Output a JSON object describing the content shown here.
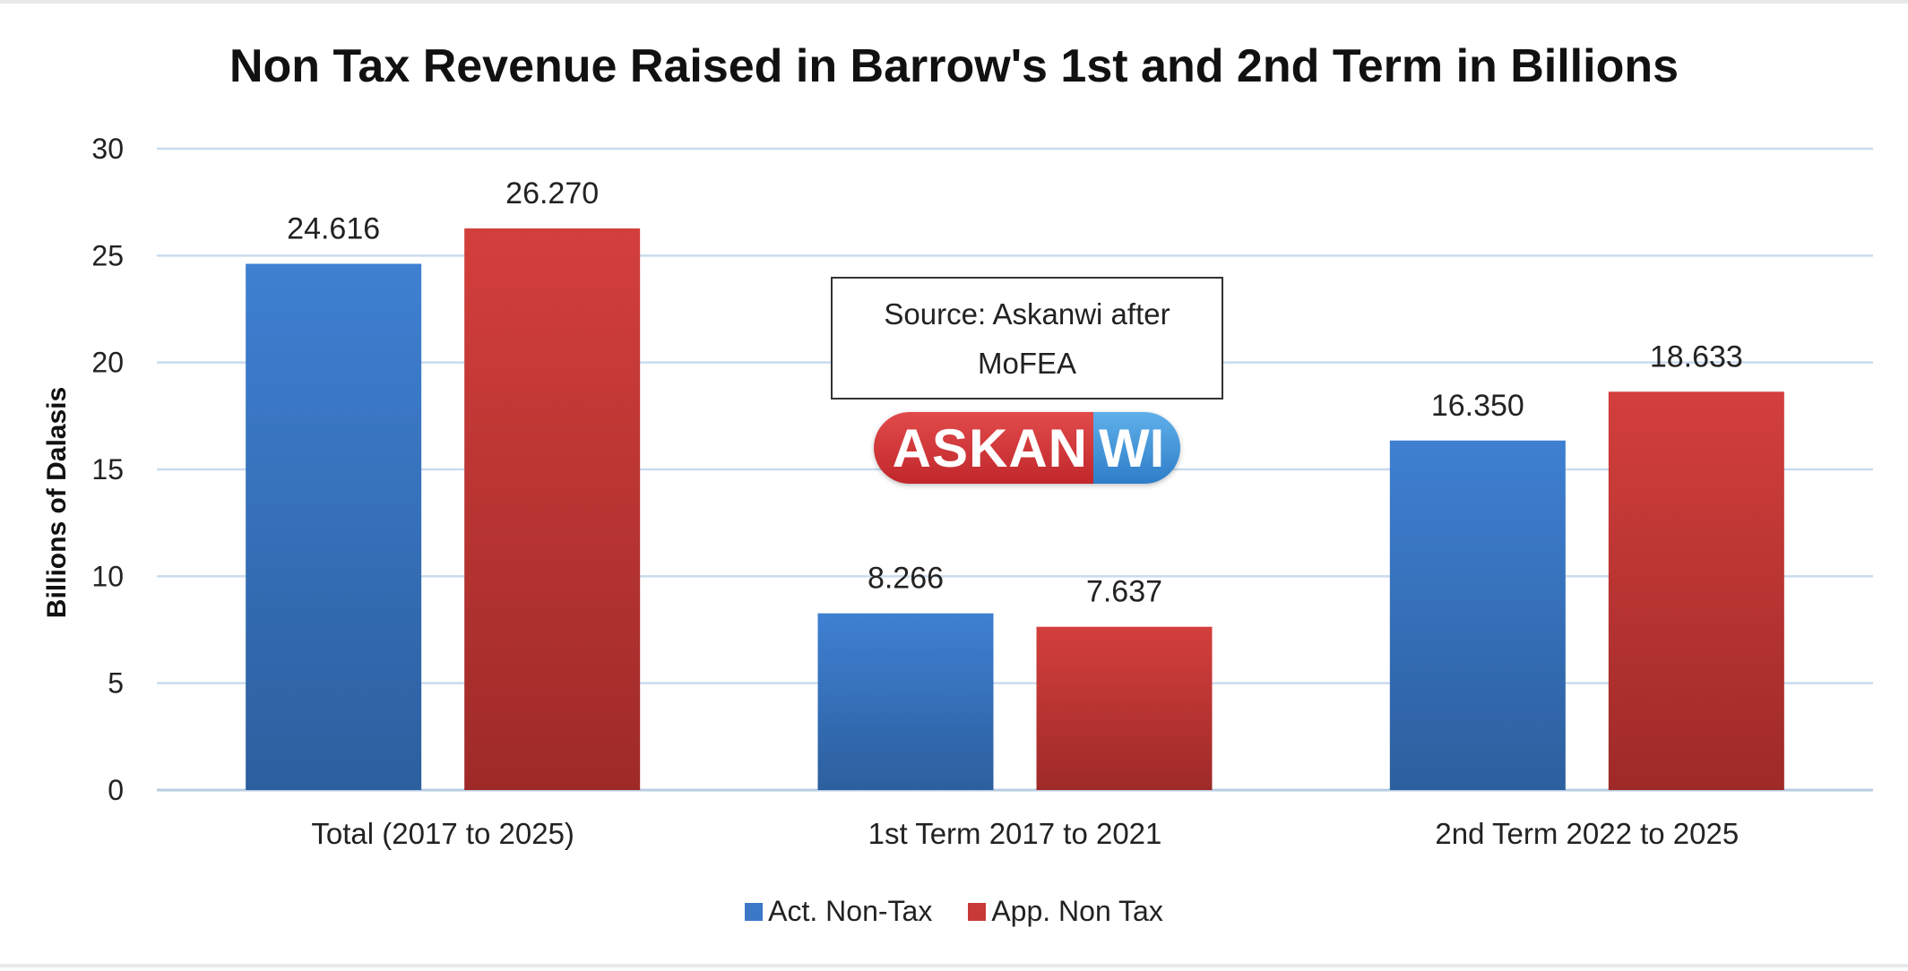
{
  "chart_data": {
    "type": "bar",
    "title": "Non Tax Revenue Raised in Barrow's 1st and 2nd Term in Billions",
    "ylabel": "Billions of Dalasis",
    "xlabel": "",
    "ylim": [
      0,
      30
    ],
    "yticks": [
      "0",
      "5",
      "10",
      "15",
      "20",
      "25",
      "30"
    ],
    "categories": [
      "Total (2017 to 2025)",
      "1st Term 2017 to 2021",
      "2nd Term 2022 to 2025"
    ],
    "series": [
      {
        "name": "Act. Non-Tax",
        "color": "#3b78c8",
        "values": [
          24.616,
          8.266,
          16.35
        ],
        "labels": [
          "24.616",
          "8.266",
          "16.350"
        ]
      },
      {
        "name": "App. Non Tax",
        "color": "#c83a38",
        "values": [
          26.27,
          7.637,
          18.633
        ],
        "labels": [
          "26.270",
          "7.637",
          "18.633"
        ]
      }
    ],
    "grid": true,
    "legend_position": "bottom"
  },
  "annotation": {
    "source_text": "Source: Askanwi after MoFEA"
  },
  "logo": {
    "text_red": "ASKAN",
    "text_blue": "WI"
  }
}
